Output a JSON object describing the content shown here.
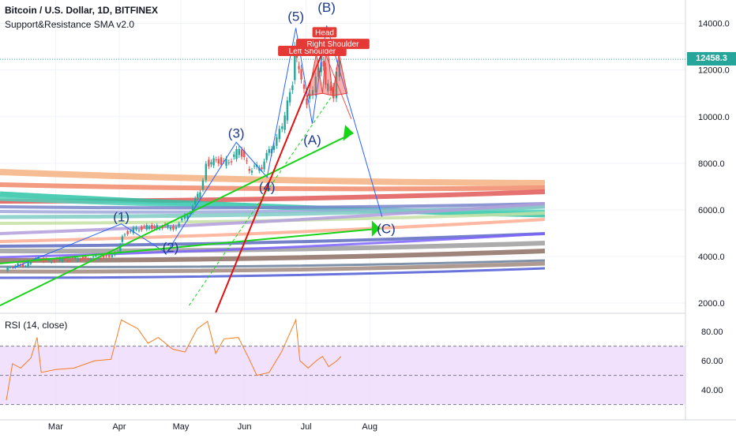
{
  "legend": {
    "symbol": "Bitcoin / U.S. Dollar, 1D, BITFINEX",
    "indicator": "Support&Resistance SMA v2.0",
    "rsi": "RSI (14, close)"
  },
  "price_tag": "12458.3",
  "colors": {
    "grid": "#f0f3fa",
    "axis_text": "#131722",
    "up": "#26a69a",
    "down": "#ef5350",
    "wave_line": "#2962ff",
    "wave_label": "#1e3a8a",
    "trend_green": "#18d418",
    "trend_red": "#e01010",
    "rsi_line": "#f57c20",
    "rsi_band": "#ecd4fb"
  },
  "chart_data": [
    {
      "type": "candlestick",
      "title": "Bitcoin / U.S. Dollar, 1D, BITFINEX",
      "xlabel": "",
      "ylabel": "",
      "ylim": [
        1600,
        15000
      ],
      "y_ticks": [
        "14000.0",
        "12000.0",
        "10000.0",
        "8000.0",
        "6000.0",
        "4000.0",
        "2000.0"
      ],
      "y_tick_values": [
        14000,
        12000,
        10000,
        8000,
        6000,
        4000,
        2000
      ],
      "x_ticks": [
        "Mar",
        "Apr",
        "May",
        "Jun",
        "Jul",
        "Aug"
      ],
      "last_price": 12458.3,
      "close_series": [
        {
          "date": "2019-02-05",
          "close": 3420
        },
        {
          "date": "2019-02-10",
          "close": 3650
        },
        {
          "date": "2019-02-15",
          "close": 3620
        },
        {
          "date": "2019-02-20",
          "close": 3950
        },
        {
          "date": "2019-02-25",
          "close": 3820
        },
        {
          "date": "2019-03-05",
          "close": 3860
        },
        {
          "date": "2019-03-15",
          "close": 3920
        },
        {
          "date": "2019-03-25",
          "close": 3990
        },
        {
          "date": "2019-04-01",
          "close": 4150
        },
        {
          "date": "2019-04-03",
          "close": 4950
        },
        {
          "date": "2019-04-10",
          "close": 5200
        },
        {
          "date": "2019-04-20",
          "close": 5300
        },
        {
          "date": "2019-04-28",
          "close": 5250
        },
        {
          "date": "2019-05-05",
          "close": 5800
        },
        {
          "date": "2019-05-11",
          "close": 6800
        },
        {
          "date": "2019-05-14",
          "close": 8000
        },
        {
          "date": "2019-05-20",
          "close": 8100
        },
        {
          "date": "2019-05-25",
          "close": 8000
        },
        {
          "date": "2019-05-30",
          "close": 8600
        },
        {
          "date": "2019-06-04",
          "close": 7700
        },
        {
          "date": "2019-06-10",
          "close": 7900
        },
        {
          "date": "2019-06-16",
          "close": 8900
        },
        {
          "date": "2019-06-20",
          "close": 9500
        },
        {
          "date": "2019-06-25",
          "close": 11500
        },
        {
          "date": "2019-06-26",
          "close": 12900
        },
        {
          "date": "2019-06-28",
          "close": 11800
        },
        {
          "date": "2019-07-02",
          "close": 10600
        },
        {
          "date": "2019-07-05",
          "close": 11000
        },
        {
          "date": "2019-07-09",
          "close": 12500
        },
        {
          "date": "2019-07-11",
          "close": 11300
        },
        {
          "date": "2019-07-15",
          "close": 11000
        },
        {
          "date": "2019-07-18",
          "close": 12458
        }
      ],
      "wave_labels": [
        {
          "label": "(1)",
          "date": "2019-04-02",
          "price": 5500
        },
        {
          "label": "(2)",
          "date": "2019-04-26",
          "price": 4200
        },
        {
          "label": "(3)",
          "date": "2019-05-28",
          "price": 9100
        },
        {
          "label": "(4)",
          "date": "2019-06-12",
          "price": 6800
        },
        {
          "label": "(5)",
          "date": "2019-06-26",
          "price": 14100
        },
        {
          "label": "(A)",
          "date": "2019-07-04",
          "price": 8800
        },
        {
          "label": "(B)",
          "date": "2019-07-11",
          "price": 14500
        },
        {
          "label": "(C)",
          "date": "2019-08-09",
          "price": 5000
        }
      ],
      "pattern_labels": [
        {
          "label": "Left Shoulder",
          "date": "2019-07-04",
          "price": 12700
        },
        {
          "label": "Head",
          "date": "2019-07-10",
          "price": 13500
        },
        {
          "label": "Right Shoulder",
          "date": "2019-07-14",
          "price": 13000
        }
      ]
    },
    {
      "type": "line",
      "title": "RSI (14, close)",
      "ylim": [
        26,
        92
      ],
      "y_ticks": [
        "80.00",
        "60.00",
        "40.00"
      ],
      "y_tick_values": [
        80,
        60,
        40
      ],
      "band": [
        30,
        70
      ],
      "series": [
        {
          "name": "RSI",
          "values": [
            {
              "date": "2019-02-05",
              "v": 33
            },
            {
              "date": "2019-02-08",
              "v": 58
            },
            {
              "date": "2019-02-12",
              "v": 55
            },
            {
              "date": "2019-02-17",
              "v": 62
            },
            {
              "date": "2019-02-20",
              "v": 76
            },
            {
              "date": "2019-02-22",
              "v": 52
            },
            {
              "date": "2019-03-01",
              "v": 54
            },
            {
              "date": "2019-03-10",
              "v": 55
            },
            {
              "date": "2019-03-20",
              "v": 60
            },
            {
              "date": "2019-03-28",
              "v": 61
            },
            {
              "date": "2019-04-02",
              "v": 88
            },
            {
              "date": "2019-04-10",
              "v": 82
            },
            {
              "date": "2019-04-15",
              "v": 72
            },
            {
              "date": "2019-04-20",
              "v": 76
            },
            {
              "date": "2019-04-27",
              "v": 68
            },
            {
              "date": "2019-05-03",
              "v": 66
            },
            {
              "date": "2019-05-09",
              "v": 82
            },
            {
              "date": "2019-05-14",
              "v": 87
            },
            {
              "date": "2019-05-18",
              "v": 65
            },
            {
              "date": "2019-05-22",
              "v": 75
            },
            {
              "date": "2019-05-29",
              "v": 76
            },
            {
              "date": "2019-06-03",
              "v": 62
            },
            {
              "date": "2019-06-07",
              "v": 50
            },
            {
              "date": "2019-06-13",
              "v": 52
            },
            {
              "date": "2019-06-19",
              "v": 66
            },
            {
              "date": "2019-06-26",
              "v": 88
            },
            {
              "date": "2019-06-28",
              "v": 60
            },
            {
              "date": "2019-07-02",
              "v": 55
            },
            {
              "date": "2019-07-06",
              "v": 60
            },
            {
              "date": "2019-07-09",
              "v": 63
            },
            {
              "date": "2019-07-12",
              "v": 56
            },
            {
              "date": "2019-07-16",
              "v": 60
            },
            {
              "date": "2019-07-18",
              "v": 63
            }
          ]
        }
      ]
    }
  ]
}
